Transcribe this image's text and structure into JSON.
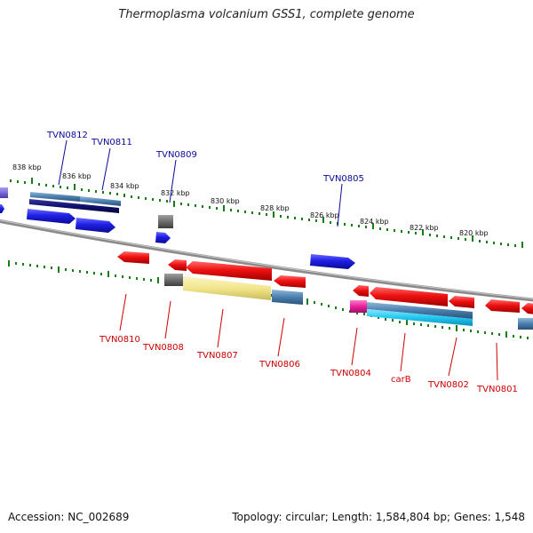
{
  "title": "Thermoplasma volcanium GSS1, complete genome",
  "accession_text": "Accession: NC_002689",
  "summary_text": "Topology: circular; Length: 1,584,804 bp; Genes: 1,548",
  "colors": {
    "forward_gene": "#1f1fe6",
    "reverse_gene": "#ee1111",
    "forward_label": "#0a0a99",
    "reverse_label": "#cc0000",
    "backbone": "#8a8a8a",
    "tick": "#1a7a1a",
    "rna": "#e8219a",
    "feature_blue": "#4a7fae",
    "feature_cyan": "#22c8f0",
    "feature_yellow": "#f2e68c",
    "feature_gray": "#6d6d6d",
    "feature_navy": "#101070",
    "feature_purple": "#7a6ad8"
  },
  "scale_labels": [
    "838 kbp",
    "836 kbp",
    "834 kbp",
    "832 kbp",
    "830 kbp",
    "828 kbp",
    "826 kbp",
    "824 kbp",
    "822 kbp",
    "820 kbp"
  ],
  "forward_labels": [
    "TVN0812",
    "TVN0811",
    "TVN0809",
    "TVN0805"
  ],
  "reverse_labels": [
    "TVN0810",
    "TVN0808",
    "TVN0807",
    "TVN0806",
    "TVN0804",
    "carB",
    "TVN0802",
    "TVN0801"
  ]
}
